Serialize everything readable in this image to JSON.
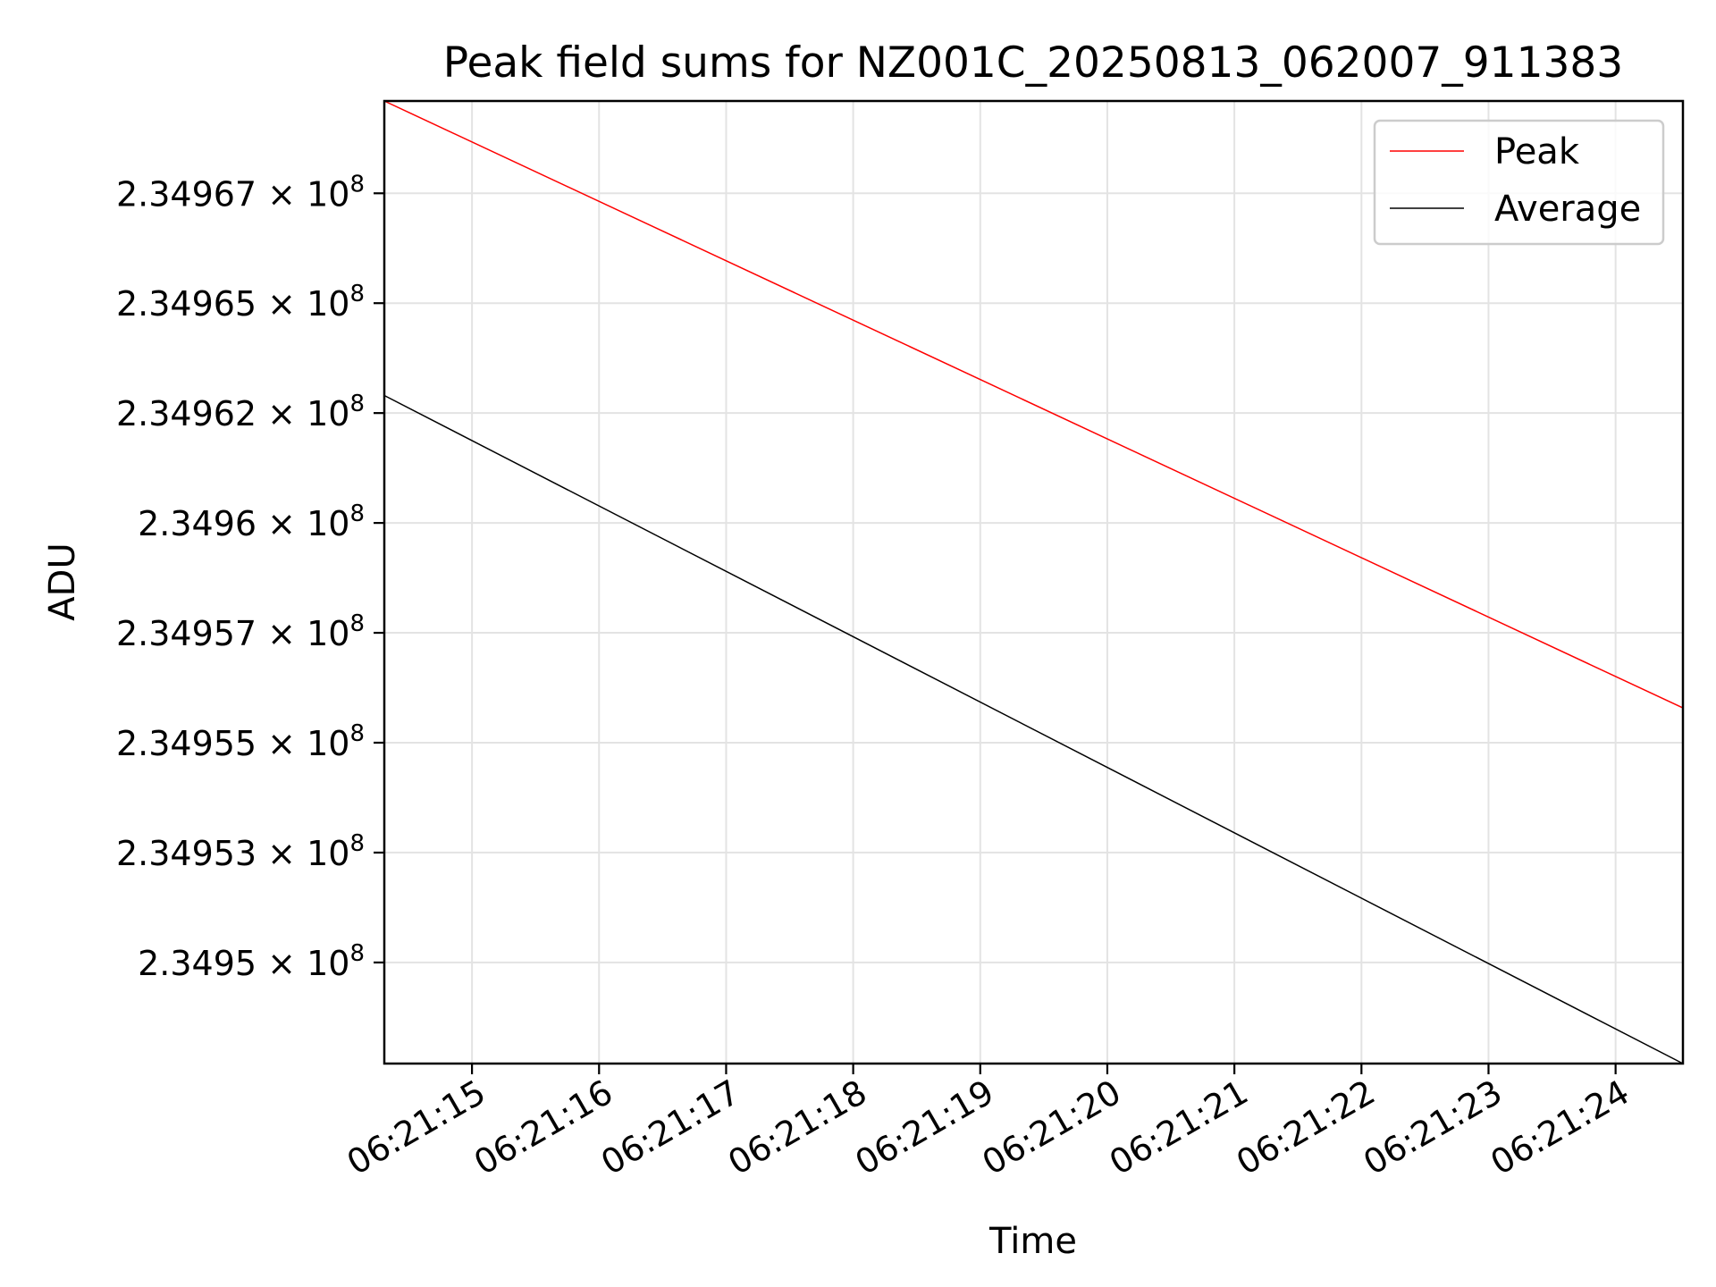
{
  "chart_data": {
    "type": "line",
    "title": "Peak field sums for NZ001C_20250813_062007_911383",
    "xlabel": "Time",
    "ylabel": "ADU",
    "date": "2025-08-13",
    "x_tick_labels": [
      "06:21:15",
      "06:21:16",
      "06:21:17",
      "06:21:18",
      "06:21:19",
      "06:21:20",
      "06:21:21",
      "06:21:22",
      "06:21:23",
      "06:21:24"
    ],
    "x_ticks": [
      "06:21:15",
      "06:21:16",
      "06:21:17",
      "06:21:18",
      "06:21:19",
      "06:21:20",
      "06:21:21",
      "06:21:22",
      "06:21:23",
      "06:21:24"
    ],
    "xlim": [
      "06:21:14.31",
      "06:21:24.53"
    ],
    "y_ticks": [
      234950000,
      234952500,
      234955000,
      234957500,
      234960000,
      234962500,
      234965000,
      234967500
    ],
    "y_tick_labels": [
      {
        "mantissa": "2.3495",
        "base": "10",
        "exponent": "8"
      },
      {
        "mantissa": "2.34953",
        "base": "10",
        "exponent": "8"
      },
      {
        "mantissa": "2.34955",
        "base": "10",
        "exponent": "8"
      },
      {
        "mantissa": "2.34957",
        "base": "10",
        "exponent": "8"
      },
      {
        "mantissa": "2.3496",
        "base": "10",
        "exponent": "8"
      },
      {
        "mantissa": "2.34962",
        "base": "10",
        "exponent": "8"
      },
      {
        "mantissa": "2.34965",
        "base": "10",
        "exponent": "8"
      },
      {
        "mantissa": "2.34967",
        "base": "10",
        "exponent": "8"
      }
    ],
    "ylim": [
      234947700,
      234969600
    ],
    "y_scale": "log",
    "grid": true,
    "legend_position": "top-right",
    "series": [
      {
        "name": "Peak",
        "color": "#ff0000",
        "x": [
          "06:21:14.31",
          "06:21:24.53"
        ],
        "y": [
          234969600,
          234955790
        ]
      },
      {
        "name": "Average",
        "color": "#000000",
        "x": [
          "06:21:14.31",
          "06:21:24.53"
        ],
        "y": [
          234962900,
          234947700
        ]
      }
    ]
  }
}
